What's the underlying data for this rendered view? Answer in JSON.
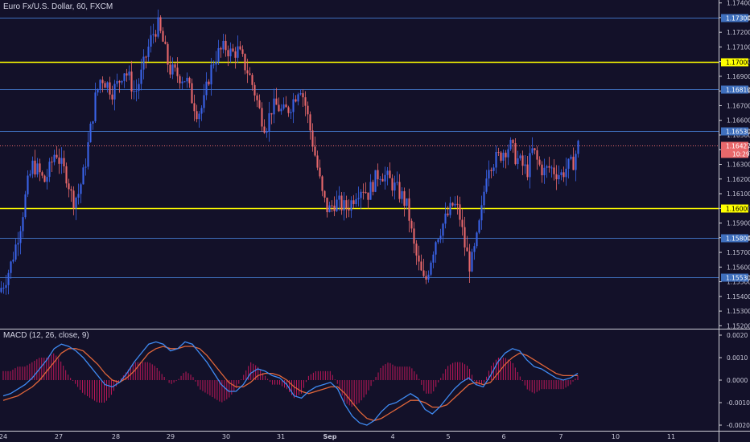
{
  "header": {
    "symbol_title": "Euro Fx/U.S. Dollar, 60, FXCM"
  },
  "macd_panel": {
    "title": "MACD (12, 26, close, 9)"
  },
  "colors": {
    "background": "#131129",
    "up": "#3a63e8",
    "down": "#e8686b",
    "support_resistance": "#ffff00",
    "level_line": "#3f6fbd",
    "macd_line": "#3f8bf3",
    "signal_line": "#e0663a",
    "histogram": "#c0185a",
    "current_price": "#e8686b"
  },
  "chart_data": [
    {
      "type": "candlestick",
      "title": "Euro Fx/U.S. Dollar, 60, FXCM",
      "x_ticks": [
        "24",
        "27",
        "28",
        "29",
        "30",
        "31",
        "Sep",
        "4",
        "5",
        "6",
        "7",
        "10",
        "11"
      ],
      "y_ticks": [
        "1.17400",
        "1.17300",
        "1.17200",
        "1.17100",
        "1.17000",
        "1.16900",
        "1.16800",
        "1.16700",
        "1.16600",
        "1.16500",
        "1.16400",
        "1.16300",
        "1.16200",
        "1.16100",
        "1.16000",
        "1.15900",
        "1.15800",
        "1.15700",
        "1.15600",
        "1.15500",
        "1.15400",
        "1.15300",
        "1.15200"
      ],
      "ylim": [
        1.1518,
        1.1742
      ],
      "horizontal_lines": [
        {
          "value": 1.173,
          "label": "1.17300",
          "style": "level"
        },
        {
          "value": 1.17,
          "label": "1.17000",
          "style": "support_resistance"
        },
        {
          "value": 1.1681,
          "label": "1.16810",
          "style": "level"
        },
        {
          "value": 1.1653,
          "label": "1.16530",
          "style": "level"
        },
        {
          "value": 1.16,
          "label": "1.16000",
          "style": "support_resistance"
        },
        {
          "value": 1.158,
          "label": "1.15800",
          "style": "level"
        },
        {
          "value": 1.1553,
          "label": "1.15530",
          "style": "level"
        }
      ],
      "current_price": {
        "value": 1.16427,
        "label": "1.16427",
        "countdown": "10:29"
      },
      "price_path": [
        [
          0,
          1.1543
        ],
        [
          2,
          1.155
        ],
        [
          4,
          1.156
        ],
        [
          6,
          1.1575
        ],
        [
          8,
          1.1592
        ],
        [
          10,
          1.1615
        ],
        [
          12,
          1.163
        ],
        [
          14,
          1.1625
        ],
        [
          16,
          1.1618
        ],
        [
          18,
          1.1627
        ],
        [
          20,
          1.164
        ],
        [
          22,
          1.1629
        ],
        [
          24,
          1.1622
        ],
        [
          26,
          1.1605
        ],
        [
          28,
          1.161
        ],
        [
          30,
          1.1625
        ],
        [
          32,
          1.165
        ],
        [
          34,
          1.1675
        ],
        [
          36,
          1.169
        ],
        [
          38,
          1.1685
        ],
        [
          40,
          1.168
        ],
        [
          42,
          1.1685
        ],
        [
          44,
          1.1695
        ],
        [
          46,
          1.1688
        ],
        [
          48,
          1.1678
        ],
        [
          50,
          1.169
        ],
        [
          52,
          1.1705
        ],
        [
          54,
          1.1718
        ],
        [
          56,
          1.1725
        ],
        [
          58,
          1.1712
        ],
        [
          60,
          1.1695
        ],
        [
          62,
          1.1692
        ],
        [
          64,
          1.169
        ],
        [
          66,
          1.1688
        ],
        [
          68,
          1.1675
        ],
        [
          70,
          1.1665
        ],
        [
          72,
          1.167
        ],
        [
          74,
          1.169
        ],
        [
          76,
          1.1703
        ],
        [
          78,
          1.1707
        ],
        [
          80,
          1.171
        ],
        [
          82,
          1.1705
        ],
        [
          84,
          1.1708
        ],
        [
          86,
          1.17
        ],
        [
          88,
          1.1692
        ],
        [
          90,
          1.168
        ],
        [
          92,
          1.1665
        ],
        [
          94,
          1.1655
        ],
        [
          96,
          1.1668
        ],
        [
          98,
          1.167
        ],
        [
          100,
          1.1665
        ],
        [
          102,
          1.1668
        ],
        [
          104,
          1.1675
        ],
        [
          106,
          1.1685
        ],
        [
          108,
          1.167
        ],
        [
          110,
          1.165
        ],
        [
          112,
          1.163
        ],
        [
          114,
          1.1608
        ],
        [
          116,
          1.1598
        ],
        [
          118,
          1.1604
        ],
        [
          120,
          1.1603
        ],
        [
          122,
          1.16
        ],
        [
          124,
          1.1604
        ],
        [
          126,
          1.1612
        ],
        [
          128,
          1.1615
        ],
        [
          130,
          1.161
        ],
        [
          132,
          1.1618
        ],
        [
          134,
          1.1625
        ],
        [
          136,
          1.1622
        ],
        [
          138,
          1.1618
        ],
        [
          140,
          1.1613
        ],
        [
          142,
          1.1608
        ],
        [
          144,
          1.16
        ],
        [
          146,
          1.1575
        ],
        [
          148,
          1.156
        ],
        [
          150,
          1.1548
        ],
        [
          152,
          1.1565
        ],
        [
          154,
          1.158
        ],
        [
          156,
          1.1588
        ],
        [
          158,
          1.1595
        ],
        [
          160,
          1.1603
        ],
        [
          162,
          1.1598
        ],
        [
          164,
          1.1575
        ],
        [
          166,
          1.156
        ],
        [
          168,
          1.1575
        ],
        [
          170,
          1.1598
        ],
        [
          172,
          1.163
        ],
        [
          174,
          1.1632
        ],
        [
          176,
          1.1635
        ],
        [
          178,
          1.164
        ],
        [
          180,
          1.1643
        ],
        [
          182,
          1.1635
        ],
        [
          184,
          1.163
        ],
        [
          186,
          1.1625
        ],
        [
          188,
          1.164
        ],
        [
          190,
          1.163
        ],
        [
          192,
          1.1625
        ],
        [
          194,
          1.1628
        ],
        [
          196,
          1.1625
        ],
        [
          198,
          1.1623
        ],
        [
          200,
          1.1628
        ],
        [
          202,
          1.163
        ],
        [
          204,
          1.1643
        ]
      ]
    },
    {
      "type": "line",
      "title": "MACD (12, 26, close, 9)",
      "y_ticks": [
        "0.0020",
        "0.0010",
        "0.0000",
        "-0.0010",
        "-0.0020"
      ],
      "ylim": [
        -0.00225,
        0.00225
      ],
      "series": [
        {
          "name": "MACD",
          "values": [
            -0.0007,
            -0.0006,
            -0.0004,
            -0.0002,
            0.0001,
            0.0005,
            0.0009,
            0.0014,
            0.0016,
            0.0015,
            0.0013,
            0.001,
            0.0006,
            0.0002,
            -0.0002,
            -0.0003,
            -0.0001,
            0.0003,
            0.0008,
            0.0012,
            0.0016,
            0.0017,
            0.0016,
            0.0013,
            0.0014,
            0.0017,
            0.0016,
            0.0012,
            0.0008,
            0.0003,
            -0.0002,
            -0.0005,
            -0.0005,
            -0.0002,
            0.0003,
            0.0005,
            0.0004,
            0.0002,
            0.0001,
            -0.0002,
            -0.0007,
            -0.0008,
            -0.0005,
            -0.0003,
            -0.0002,
            -0.0001,
            -0.0004,
            -0.0011,
            -0.0016,
            -0.0019,
            -0.002,
            -0.0018,
            -0.0014,
            -0.0011,
            -0.001,
            -0.0008,
            -0.0006,
            -0.0008,
            -0.0013,
            -0.0015,
            -0.0012,
            -0.0008,
            -0.0004,
            -0.0001,
            0.0001,
            -0.0002,
            -0.0003,
            0.0002,
            0.0008,
            0.0012,
            0.0014,
            0.0013,
            0.0009,
            0.0006,
            0.0005,
            0.0003,
            0.0001,
            0.0,
            0.0001,
            0.0003
          ]
        },
        {
          "name": "Signal",
          "values": [
            -0.0009,
            -0.0008,
            -0.0007,
            -0.0005,
            -0.0003,
            0.0,
            0.0004,
            0.0008,
            0.0012,
            0.0014,
            0.0014,
            0.0013,
            0.001,
            0.0007,
            0.0003,
            0.0,
            -0.0001,
            0.0001,
            0.0004,
            0.0008,
            0.0012,
            0.0014,
            0.0015,
            0.0014,
            0.0014,
            0.0015,
            0.0015,
            0.0014,
            0.0011,
            0.0007,
            0.0003,
            -0.0001,
            -0.0003,
            -0.0003,
            -0.0001,
            0.0002,
            0.0003,
            0.0003,
            0.0002,
            0.0,
            -0.0003,
            -0.0005,
            -0.0006,
            -0.0005,
            -0.0004,
            -0.0003,
            -0.0003,
            -0.0006,
            -0.001,
            -0.0014,
            -0.0017,
            -0.0018,
            -0.0017,
            -0.0015,
            -0.0013,
            -0.0011,
            -0.0009,
            -0.0009,
            -0.001,
            -0.0012,
            -0.0012,
            -0.0011,
            -0.0008,
            -0.0005,
            -0.0002,
            -0.0001,
            -0.0002,
            -0.0001,
            0.0003,
            0.0007,
            0.001,
            0.0012,
            0.0011,
            0.0009,
            0.0007,
            0.0005,
            0.0003,
            0.0002,
            0.0002,
            0.0002
          ]
        }
      ]
    }
  ]
}
